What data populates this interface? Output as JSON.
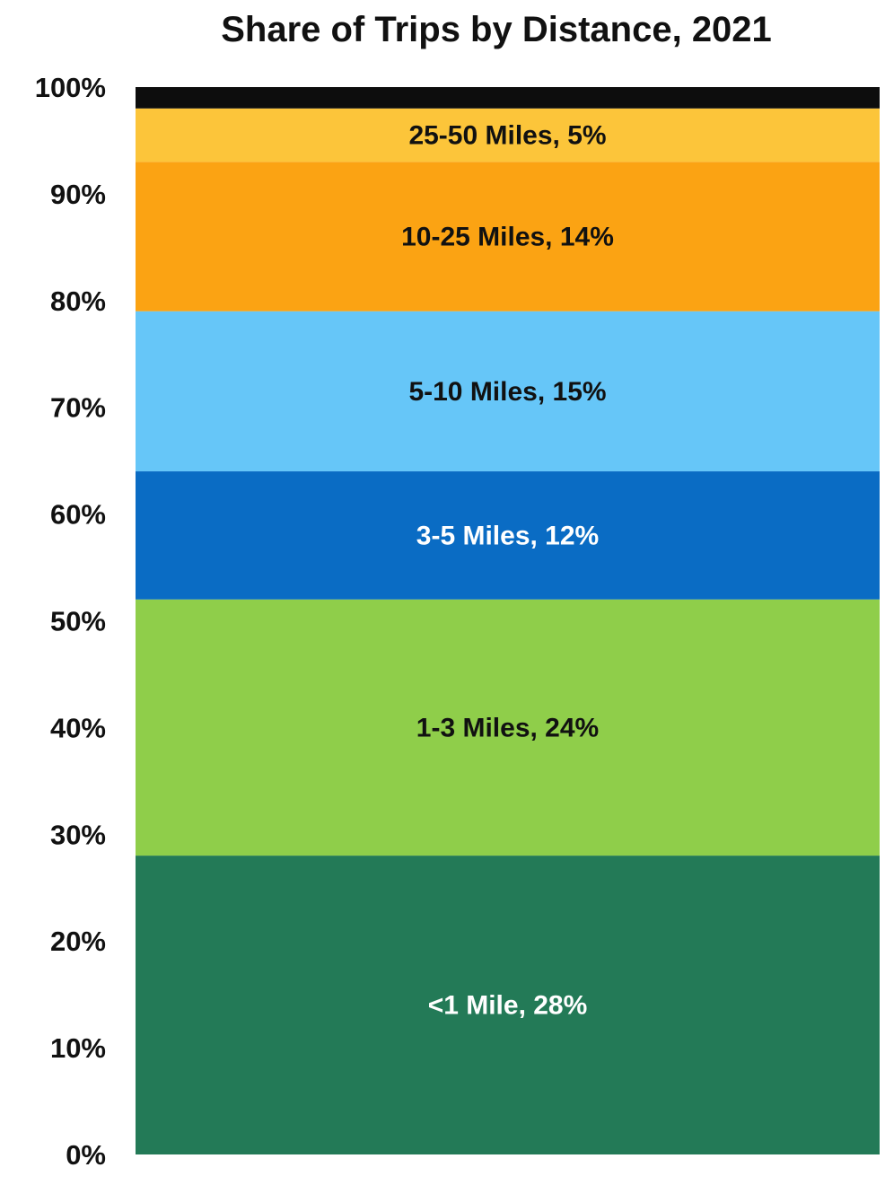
{
  "chart_data": {
    "type": "bar",
    "stacked": true,
    "title": "Share of Trips by Distance, 2021",
    "xlabel": "",
    "ylabel": "",
    "ylim": [
      0,
      100
    ],
    "y_ticks": [
      "0%",
      "10%",
      "20%",
      "30%",
      "40%",
      "50%",
      "60%",
      "70%",
      "80%",
      "90%",
      "100%"
    ],
    "grid": false,
    "legend": "none",
    "categories": [
      ""
    ],
    "segments": [
      {
        "label": "<1 Mile, 28%",
        "value": 28,
        "color": "#237a57",
        "text_color": "#ffffff"
      },
      {
        "label": "1-3 Miles, 24%",
        "value": 24,
        "color": "#8fce4a",
        "text_color": "#111111"
      },
      {
        "label": "3-5 Miles, 12%",
        "value": 12,
        "color": "#0a6cc4",
        "text_color": "#ffffff"
      },
      {
        "label": "5-10 Miles, 15%",
        "value": 15,
        "color": "#66c6f8",
        "text_color": "#111111"
      },
      {
        "label": "10-25 Miles, 14%",
        "value": 14,
        "color": "#fba313",
        "text_color": "#111111"
      },
      {
        "label": "25-50 Miles, 5%",
        "value": 5,
        "color": "#fcc53a",
        "text_color": "#111111"
      },
      {
        "label": "",
        "value": 2.5,
        "color": "#0d0d0d",
        "text_color": "#ffffff"
      }
    ]
  }
}
